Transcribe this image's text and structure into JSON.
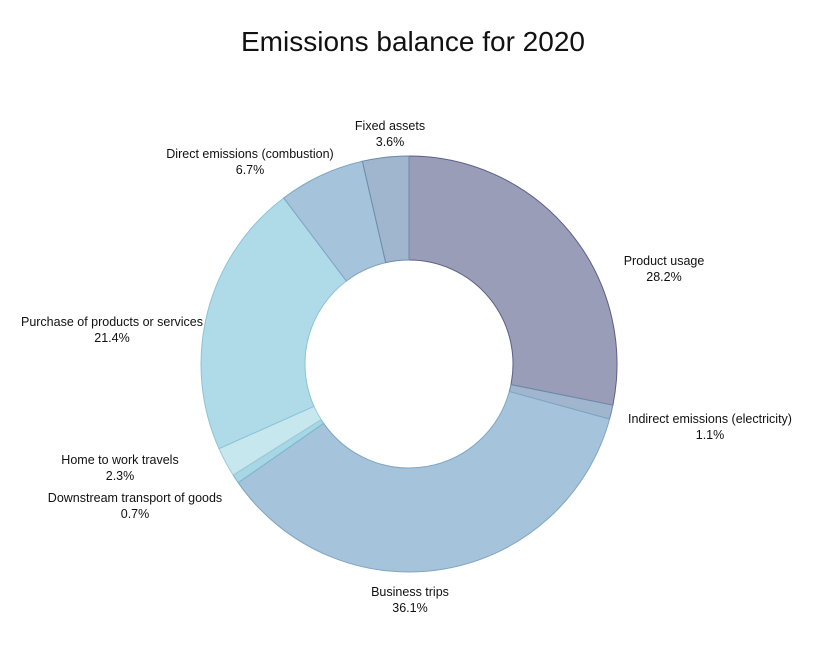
{
  "chart_data": {
    "type": "pie",
    "title": "Emissions balance for 2020",
    "categories": [
      "Product usage",
      "Indirect emissions (electricity)",
      "Business trips",
      "Downstream transport of goods",
      "Home to work travels",
      "Purchase of products or services",
      "Direct emissions (combustion)",
      "Fixed assets"
    ],
    "values": [
      28.2,
      1.1,
      36.1,
      0.7,
      2.3,
      21.4,
      6.7,
      3.6
    ],
    "value_labels": [
      "28.2%",
      "1.1%",
      "36.1%",
      "0.7%",
      "2.3%",
      "21.4%",
      "6.7%",
      "3.6%"
    ],
    "colors": [
      "#9a9db8",
      "#9fb6ce",
      "#a5c3da",
      "#a7d6e4",
      "#c7e7ef",
      "#aedbe7",
      "#a5c3da",
      "#9fb6ce"
    ],
    "stroke_colors": [
      "#5b5f88",
      "#6d8aa8",
      "#7ea6c4",
      "#7bb9cf",
      "#9ccbd9",
      "#8cc3d6",
      "#7ea6c4",
      "#6d8aa8"
    ],
    "hole": "donut",
    "start": "12 o'clock",
    "direction": "clockwise"
  }
}
